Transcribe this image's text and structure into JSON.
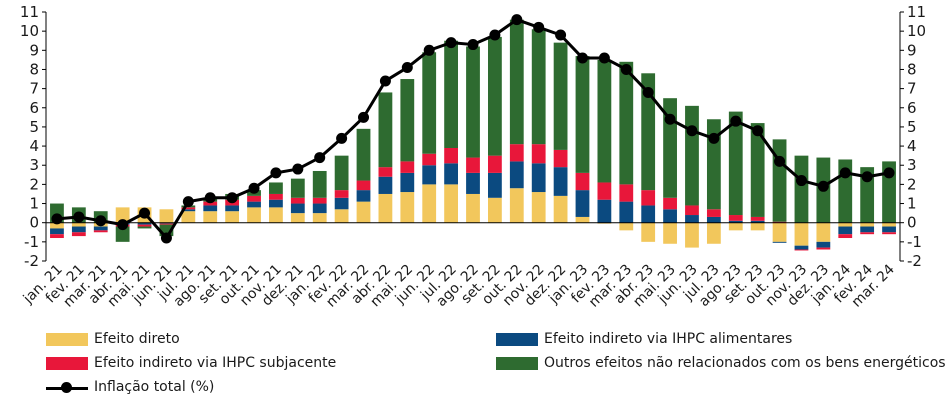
{
  "chart_data": {
    "type": "bar",
    "stacked": true,
    "categories": [
      "jan. 21",
      "fev. 21",
      "mar. 21",
      "abr. 21",
      "mai. 21",
      "jun. 21",
      "jul. 21",
      "ago. 21",
      "set. 21",
      "out. 21",
      "nov. 21",
      "dez. 21",
      "jan. 22",
      "fev. 22",
      "mar. 22",
      "abr. 22",
      "mai. 22",
      "jun. 22",
      "jul. 22",
      "ago. 22",
      "set. 22",
      "out. 22",
      "nov. 22",
      "dez. 22",
      "jan. 23",
      "fev. 23",
      "mar. 23",
      "abr. 23",
      "mai. 23",
      "jun. 23",
      "jul. 23",
      "ago. 23",
      "set. 23",
      "out. 23",
      "nov. 23",
      "dez. 23",
      "jan. 24",
      "fev. 24",
      "mar. 24"
    ],
    "ylim": [
      -2,
      11
    ],
    "yticks": [
      -2,
      -1,
      0,
      1,
      2,
      3,
      4,
      5,
      6,
      7,
      8,
      9,
      10,
      11
    ],
    "legend_position": "bottom",
    "grid": false,
    "series": [
      {
        "name": "Efeito direto",
        "color": "#f2c75c",
        "values": [
          -0.3,
          -0.2,
          -0.2,
          0.8,
          0.8,
          0.7,
          0.6,
          0.6,
          0.6,
          0.8,
          0.8,
          0.5,
          0.5,
          0.7,
          1.1,
          1.5,
          1.6,
          2.0,
          2.0,
          1.5,
          1.3,
          1.8,
          1.6,
          1.4,
          0.3,
          -0.05,
          -0.4,
          -1.0,
          -1.1,
          -1.3,
          -1.1,
          -0.4,
          -0.4,
          -1.0,
          -1.2,
          -1.0,
          -0.2,
          -0.2,
          -0.2
        ]
      },
      {
        "name": "Efeito indireto via IHPC alimentares",
        "color": "#0b4a80",
        "values": [
          -0.3,
          -0.3,
          -0.2,
          -0.1,
          -0.1,
          -0.05,
          0.1,
          0.3,
          0.3,
          0.3,
          0.4,
          0.5,
          0.5,
          0.6,
          0.6,
          0.9,
          1.0,
          1.0,
          1.1,
          1.1,
          1.3,
          1.4,
          1.5,
          1.5,
          1.4,
          1.2,
          1.1,
          0.9,
          0.7,
          0.4,
          0.3,
          0.1,
          0.1,
          -0.05,
          -0.2,
          -0.3,
          -0.4,
          -0.3,
          -0.3
        ]
      },
      {
        "name": "Efeito indireto via IHPC subjacente",
        "color": "#e8173a",
        "values": [
          -0.2,
          -0.2,
          -0.1,
          -0.1,
          -0.1,
          -0.05,
          0.1,
          0.2,
          0.3,
          0.3,
          0.3,
          0.3,
          0.3,
          0.4,
          0.5,
          0.5,
          0.6,
          0.6,
          0.8,
          0.8,
          0.9,
          0.9,
          1.0,
          0.9,
          0.9,
          0.9,
          0.9,
          0.8,
          0.6,
          0.5,
          0.4,
          0.3,
          0.2,
          0.05,
          -0.05,
          -0.1,
          -0.2,
          -0.1,
          -0.1
        ]
      },
      {
        "name": "Outros efeitos não relacionados com os bens energéticos",
        "color": "#2e6b30",
        "values": [
          1.0,
          0.8,
          0.6,
          -0.8,
          -0.1,
          -0.6,
          0.1,
          0.2,
          0.3,
          0.3,
          0.6,
          1.0,
          1.4,
          1.8,
          2.7,
          3.9,
          4.3,
          5.3,
          5.6,
          5.8,
          6.2,
          6.5,
          6.0,
          5.6,
          6.1,
          6.4,
          6.4,
          6.1,
          5.2,
          5.2,
          4.7,
          5.4,
          4.9,
          4.3,
          3.5,
          3.4,
          3.3,
          2.9,
          3.2
        ]
      },
      {
        "name": "Inflação total (%)",
        "type": "line",
        "color": "#000000",
        "values": [
          0.2,
          0.3,
          0.1,
          -0.1,
          0.5,
          -0.8,
          1.1,
          1.3,
          1.3,
          1.8,
          2.6,
          2.8,
          3.4,
          4.4,
          5.5,
          7.4,
          8.1,
          9.0,
          9.4,
          9.3,
          9.8,
          10.6,
          10.2,
          9.8,
          8.6,
          8.6,
          8.0,
          6.8,
          5.4,
          4.8,
          4.4,
          5.3,
          4.8,
          3.2,
          2.2,
          1.9,
          2.6,
          2.4,
          2.6
        ]
      }
    ]
  }
}
